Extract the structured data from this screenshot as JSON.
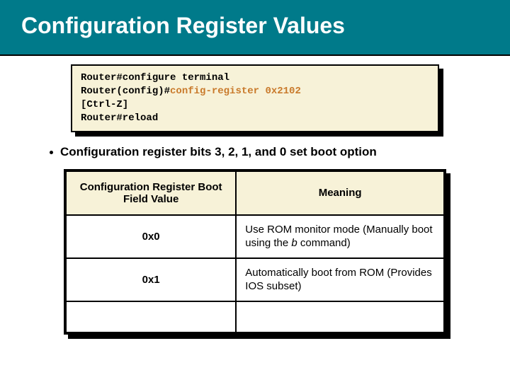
{
  "title": "Configuration Register Values",
  "terminal": {
    "line1_pre": "Router#configure terminal",
    "line2_prompt": "Router(config)#",
    "line2_cmd": "config-register 0x2102",
    "line3": "[Ctrl-Z]",
    "line4": "Router#reload"
  },
  "bullet": "Configuration register bits 3, 2, 1, and 0 set boot option",
  "table": {
    "header_left": "Configuration Register Boot Field Value",
    "header_right": "Meaning",
    "rows": [
      {
        "value": "0x0",
        "meaning_pre": "Use ROM monitor mode (Manually boot using the ",
        "meaning_italic": "b",
        "meaning_post": " command)"
      },
      {
        "value": "0x1",
        "meaning_pre": "Automatically boot from ROM (Provides IOS subset)",
        "meaning_italic": "",
        "meaning_post": ""
      }
    ]
  },
  "colors": {
    "title_bg": "#007a8a",
    "title_text": "#ffffff",
    "box_bg": "#f7f2d8",
    "highlight": "#c97a2b",
    "border": "#000000"
  }
}
